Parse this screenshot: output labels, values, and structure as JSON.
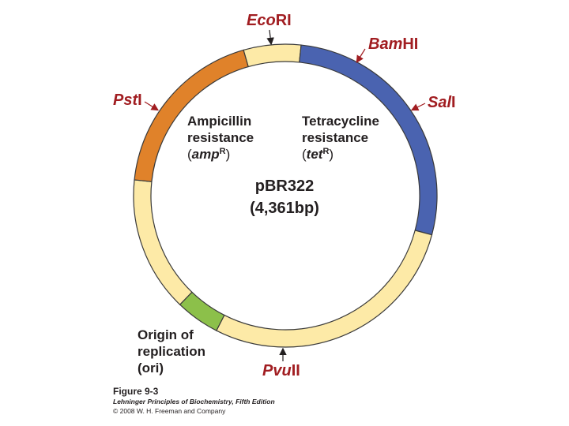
{
  "sites": [
    {
      "italic": "Eco",
      "roman": "RI"
    },
    {
      "italic": "Bam",
      "roman": "HI"
    },
    {
      "italic": "Sal",
      "roman": "I"
    },
    {
      "italic": "Pst",
      "roman": "I"
    },
    {
      "italic": "Pvu",
      "roman": "II"
    }
  ],
  "regions": [
    {
      "lines": [
        "Ampicillin",
        "resistance"
      ],
      "gene": [
        "(",
        "amp",
        "R",
        ")"
      ]
    },
    {
      "lines": [
        "Tetracycline",
        "resistance"
      ],
      "gene": [
        "(",
        "tet",
        "R",
        ")"
      ]
    },
    {
      "lines": [
        "Origin of",
        "replication",
        "(ori)"
      ]
    }
  ],
  "plasmid": {
    "name": "pBR322",
    "size": "(4,361bp)"
  },
  "caption": {
    "figure": "Figure 9-3",
    "book": "Lehninger Principles of Biochemistry, Fifth Edition",
    "copyright": "© 2008 W. H. Freeman and Company"
  }
}
